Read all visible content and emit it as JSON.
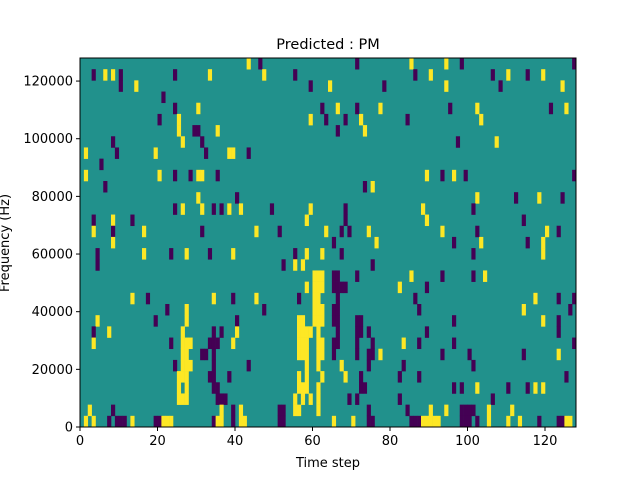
{
  "chart_data": {
    "type": "heatmap",
    "title": "Predicted : PM",
    "xlabel": "Time step",
    "ylabel": "Frequency (Hz)",
    "xlim": [
      0,
      128
    ],
    "ylim": [
      0,
      128000
    ],
    "xticks": [
      0,
      20,
      40,
      60,
      80,
      100,
      120
    ],
    "yticks": [
      0,
      20000,
      40000,
      60000,
      80000,
      100000,
      120000
    ],
    "n_time_steps": 128,
    "n_freq_bins": 33,
    "values": {
      "-1": "#440154",
      "0": "#21918c",
      "1": "#fde725"
    },
    "rows_note": "rows ordered from highest frequency bin (top) to lowest (bottom); p = time steps with value -1, y = time steps with value 1, all others 0",
    "rows": [
      {
        "p": [
          46,
          71,
          98,
          127
        ],
        "y": [
          43,
          85,
          94
        ]
      },
      {
        "p": [
          3,
          10,
          24,
          55,
          86,
          106,
          115
        ],
        "y": [
          6,
          8,
          33,
          47,
          90,
          110,
          119
        ]
      },
      {
        "p": [
          10,
          59,
          78,
          108
        ],
        "y": [
          14,
          64,
          94,
          124
        ]
      },
      {
        "p": [
          21
        ],
        "y": []
      },
      {
        "p": [
          24,
          62,
          71,
          95,
          121
        ],
        "y": [
          30,
          66,
          77,
          102,
          125
        ]
      },
      {
        "p": [
          20,
          63,
          68,
          84
        ],
        "y": [
          25,
          59,
          72,
          103
        ]
      },
      {
        "p": [
          29,
          30,
          66
        ],
        "y": [
          25,
          35,
          73
        ]
      },
      {
        "p": [
          8,
          31,
          97
        ],
        "y": [
          26,
          107
        ]
      },
      {
        "p": [
          9,
          32,
          43
        ],
        "y": [
          1,
          19,
          38,
          39
        ]
      },
      {
        "p": [
          5
        ],
        "y": []
      },
      {
        "p": [
          24,
          28,
          35,
          93,
          99,
          127
        ],
        "y": [
          1,
          20,
          30,
          31,
          89,
          96
        ]
      },
      {
        "p": [
          6,
          73
        ],
        "y": [
          75
        ]
      },
      {
        "p": [
          40,
          112,
          124
        ],
        "y": [
          30,
          102,
          118
        ]
      },
      {
        "p": [
          24,
          34,
          36,
          49,
          68,
          101
        ],
        "y": [
          26,
          31,
          38,
          41,
          59,
          88
        ]
      },
      {
        "p": [
          3,
          13,
          68,
          114
        ],
        "y": [
          8,
          58,
          89
        ]
      },
      {
        "p": [
          8,
          31,
          51,
          67,
          69,
          102,
          123
        ],
        "y": [
          3,
          16,
          45,
          63,
          74,
          93,
          120
        ]
      },
      {
        "p": [
          65,
          96,
          115
        ],
        "y": [
          8,
          76,
          103,
          119
        ]
      },
      {
        "p": [
          4,
          23,
          33,
          55,
          67,
          101
        ],
        "y": [
          16,
          27,
          39,
          58,
          62,
          119
        ]
      },
      {
        "p": [
          4,
          52,
          75
        ],
        "y": [
          55,
          57
        ]
      },
      {
        "p": [
          65,
          66,
          71,
          93,
          101
        ],
        "y": [
          60,
          61,
          62,
          85,
          104
        ]
      },
      {
        "p": [
          65,
          66,
          67,
          68,
          89
        ],
        "y": [
          58,
          60,
          61,
          62,
          82
        ]
      },
      {
        "p": [
          17,
          39,
          56,
          66,
          86,
          123,
          127
        ],
        "y": [
          13,
          34,
          45,
          60,
          61,
          117
        ]
      },
      {
        "p": [
          22,
          47,
          65,
          66,
          87,
          126
        ],
        "y": [
          27,
          60,
          61,
          62,
          114
        ]
      },
      {
        "p": [
          19,
          40,
          65,
          66,
          71,
          72,
          96,
          123
        ],
        "y": [
          4,
          27,
          56,
          57,
          60,
          61,
          62,
          119
        ]
      },
      {
        "p": [
          3,
          34,
          36,
          66,
          71,
          72,
          74,
          89,
          123
        ],
        "y": [
          7,
          26,
          40,
          56,
          57,
          58,
          59,
          61
        ]
      },
      {
        "p": [
          23,
          33,
          34,
          35,
          65,
          66,
          71,
          75,
          87,
          96,
          127
        ],
        "y": [
          3,
          26,
          27,
          28,
          39,
          56,
          57,
          58,
          61,
          62,
          83
        ]
      },
      {
        "p": [
          31,
          32,
          34,
          65,
          71,
          74,
          75,
          93,
          100,
          114
        ],
        "y": [
          26,
          27,
          56,
          57,
          58,
          61,
          62,
          77,
          123
        ]
      },
      {
        "p": [
          24,
          34,
          43,
          74,
          83,
          101
        ],
        "y": [
          26,
          27,
          28,
          58,
          61,
          67
        ]
      },
      {
        "p": [
          33,
          34,
          38,
          72,
          82,
          87,
          125
        ],
        "y": [
          25,
          26,
          27,
          56,
          58,
          62,
          68
        ]
      },
      {
        "p": [
          34,
          35,
          72,
          73,
          96,
          98,
          110,
          115
        ],
        "y": [
          25,
          27,
          56,
          57,
          58,
          61,
          102,
          117,
          119
        ]
      },
      {
        "p": [
          35,
          36,
          37,
          69,
          71,
          82,
          106
        ],
        "y": [
          25,
          26,
          27,
          55,
          57,
          59,
          61
        ]
      },
      {
        "p": [
          8,
          39,
          51,
          52,
          74,
          84,
          98,
          99,
          100,
          101
        ],
        "y": [
          2,
          36,
          41,
          55,
          56,
          61,
          90,
          94,
          105,
          111
        ]
      },
      {
        "p": [
          7,
          9,
          10,
          11,
          19,
          20,
          34,
          39,
          51,
          52,
          74,
          75,
          85,
          86,
          87,
          98,
          99,
          100,
          102,
          118,
          123,
          124
        ],
        "y": [
          1,
          3,
          13,
          21,
          22,
          23,
          35,
          36,
          41,
          42,
          65,
          70,
          88,
          89,
          90,
          91,
          92,
          105,
          110,
          113,
          125,
          126
        ]
      }
    ]
  }
}
